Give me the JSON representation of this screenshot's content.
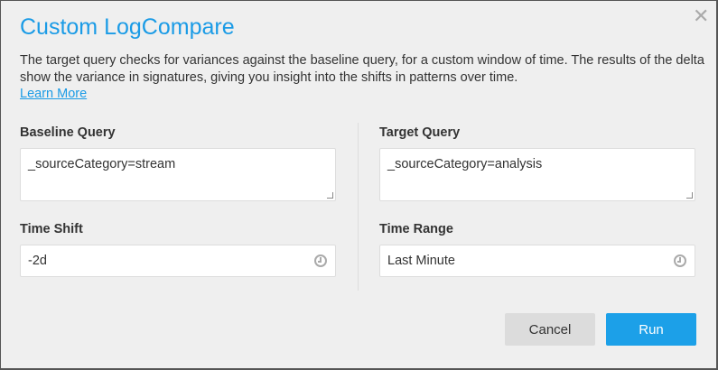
{
  "dialog": {
    "title": "Custom LogCompare",
    "description": "The target query checks for variances against the baseline query, for a custom window of time. The results of the delta show the variance in signatures, giving you insight into the shifts in patterns over time.",
    "learn_more": "Learn More",
    "baseline": {
      "label": "Baseline Query",
      "value": "_sourceCategory=stream"
    },
    "target": {
      "label": "Target Query",
      "value": "_sourceCategory=analysis"
    },
    "time_shift": {
      "label": "Time Shift",
      "value": "-2d"
    },
    "time_range": {
      "label": "Time Range",
      "value": "Last Minute"
    },
    "cancel_label": "Cancel",
    "run_label": "Run",
    "close_icon": "close-icon",
    "accent": "#1a9be6"
  }
}
